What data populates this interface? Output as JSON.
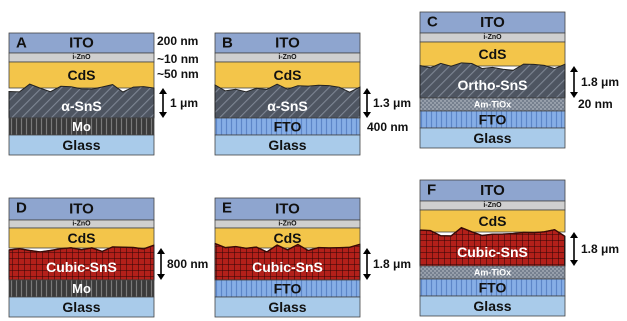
{
  "colors": {
    "ito": "#8ea5cf",
    "izno": "#cfcfcf",
    "cds": "#f3c54a",
    "alpha_sns": "#4e5561",
    "cubic_sns": "#b3201a",
    "ortho_sns": "#4e5561",
    "mo": "#3a3a3a",
    "fto": "#7fa6e0",
    "glass": "#a9cbea",
    "am_tio": "#77808f"
  },
  "panels": [
    {
      "id": "A",
      "layers": [
        {
          "name": "ito",
          "text": "ITO"
        },
        {
          "name": "izno",
          "text": "i-ZnO"
        },
        {
          "name": "cds",
          "text": "CdS"
        },
        {
          "name": "absorber",
          "text": "α-SnS"
        },
        {
          "name": "mo",
          "text": "Mo"
        },
        {
          "name": "glass",
          "text": "Glass"
        }
      ],
      "annotations": [
        "200 nm",
        "~10 nm",
        "~50 nm",
        "1 μm"
      ]
    },
    {
      "id": "B",
      "layers": [
        {
          "name": "ito",
          "text": "ITO"
        },
        {
          "name": "izno",
          "text": "i-ZnO"
        },
        {
          "name": "cds",
          "text": "CdS"
        },
        {
          "name": "absorber",
          "text": "α-SnS"
        },
        {
          "name": "fto",
          "text": "FTO"
        },
        {
          "name": "glass",
          "text": "Glass"
        }
      ],
      "annotations": [
        "1.3 μm",
        "400 nm"
      ]
    },
    {
      "id": "C",
      "layers": [
        {
          "name": "ito",
          "text": "ITO"
        },
        {
          "name": "izno",
          "text": "i-ZnO"
        },
        {
          "name": "cds",
          "text": "CdS"
        },
        {
          "name": "absorber",
          "text": "Ortho-SnS"
        },
        {
          "name": "am_tio",
          "text": "Am-TiOx"
        },
        {
          "name": "fto",
          "text": "FTO"
        },
        {
          "name": "glass",
          "text": "Glass"
        }
      ],
      "annotations": [
        "1.8 μm",
        "20 nm"
      ]
    },
    {
      "id": "D",
      "layers": [
        {
          "name": "ito",
          "text": "ITO"
        },
        {
          "name": "izno",
          "text": "i-ZnO"
        },
        {
          "name": "cds",
          "text": "CdS"
        },
        {
          "name": "absorber",
          "text": "Cubic-SnS"
        },
        {
          "name": "mo",
          "text": "Mo"
        },
        {
          "name": "glass",
          "text": "Glass"
        }
      ],
      "annotations": [
        "800 nm"
      ]
    },
    {
      "id": "E",
      "layers": [
        {
          "name": "ito",
          "text": "ITO"
        },
        {
          "name": "izno",
          "text": "i-ZnO"
        },
        {
          "name": "cds",
          "text": "CdS"
        },
        {
          "name": "absorber",
          "text": "Cubic-SnS"
        },
        {
          "name": "fto",
          "text": "FTO"
        },
        {
          "name": "glass",
          "text": "Glass"
        }
      ],
      "annotations": [
        "1.8 μm"
      ]
    },
    {
      "id": "F",
      "layers": [
        {
          "name": "ito",
          "text": "ITO"
        },
        {
          "name": "izno",
          "text": "i-ZnO"
        },
        {
          "name": "cds",
          "text": "CdS"
        },
        {
          "name": "absorber",
          "text": "Cubic-SnS"
        },
        {
          "name": "am_tio",
          "text": "Am-TiOx"
        },
        {
          "name": "fto",
          "text": "FTO"
        },
        {
          "name": "glass",
          "text": "Glass"
        }
      ],
      "annotations": [
        "1.8 μm"
      ]
    }
  ]
}
